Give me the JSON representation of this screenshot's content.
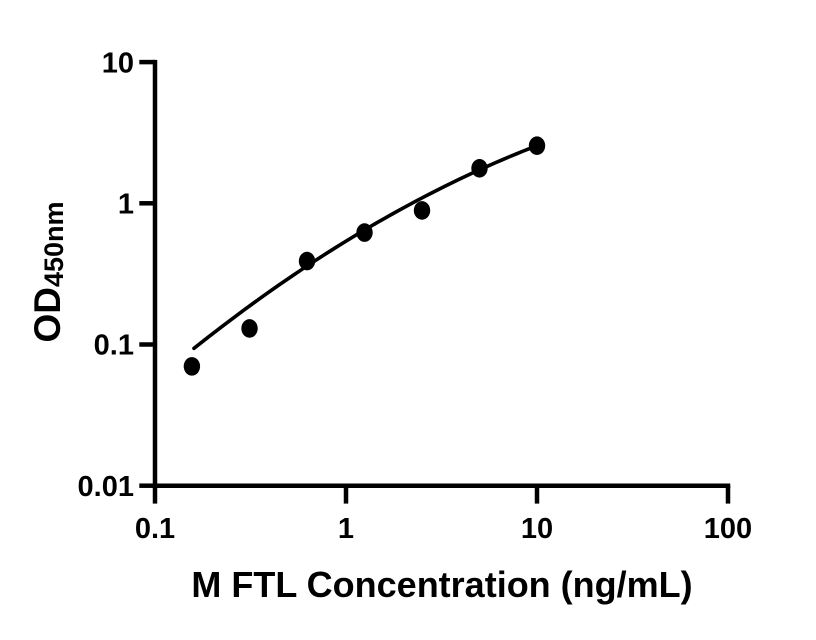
{
  "page": {
    "background": "#ffffff",
    "ink_color": "#000000"
  },
  "chart_data": {
    "type": "scatter",
    "title": "",
    "xlabel": "M FTL Concentration (ng/mL)",
    "ylabel": "OD",
    "ylabel_subscript": "450nm",
    "x_scale": "log10",
    "y_scale": "log10",
    "xlim": [
      0.1,
      100
    ],
    "ylim": [
      0.01,
      10
    ],
    "x_ticks": [
      "0.1",
      "1",
      "10",
      "100"
    ],
    "y_ticks": [
      "10",
      "1",
      "0.1",
      "0.01"
    ],
    "grid": false,
    "legend": null,
    "marker": {
      "shape": "filled-circle",
      "color": "#000000"
    },
    "line_color": "#000000",
    "points": [
      {
        "x": 0.156,
        "y": 0.07
      },
      {
        "x": 0.3125,
        "y": 0.13
      },
      {
        "x": 0.625,
        "y": 0.39
      },
      {
        "x": 1.25,
        "y": 0.62
      },
      {
        "x": 2.5,
        "y": 0.89
      },
      {
        "x": 5,
        "y": 1.77
      },
      {
        "x": 10,
        "y": 2.56
      }
    ],
    "fit_curve": {
      "model": "quadratic_in_loglog",
      "a": -0.15446,
      "b": 0.8308,
      "c": -0.26815,
      "x_start": 0.16,
      "x_end": 10.05
    }
  }
}
